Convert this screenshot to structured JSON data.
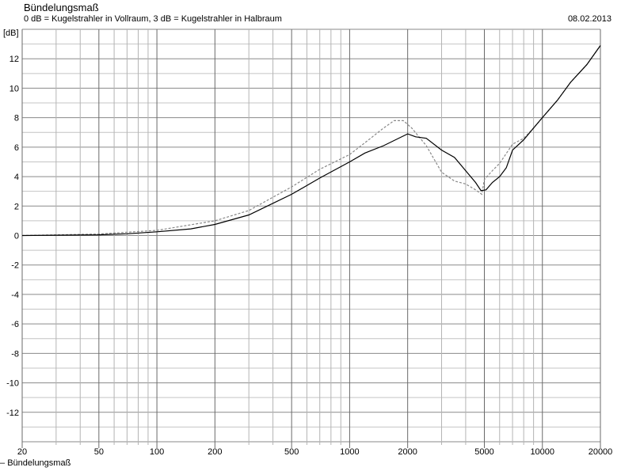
{
  "chart_data": {
    "type": "line",
    "title": "Bündelungsmaß",
    "subtitle": "0 dB = Kugelstrahler in Vollraum, 3 dB = Kugelstrahler in Halbraum",
    "date": "08.02.2013",
    "ylabel": "[dB]",
    "xlabel": "",
    "xscale": "log",
    "xlim": [
      20,
      20000
    ],
    "ylim": [
      -14,
      14
    ],
    "grid": true,
    "x_ticks": [
      20,
      50,
      100,
      200,
      500,
      1000,
      2000,
      5000,
      10000,
      20000
    ],
    "y_ticks": [
      12,
      10,
      8,
      6,
      4,
      2,
      0,
      -2,
      -4,
      -6,
      -8,
      -10,
      -12
    ],
    "legend": {
      "placement": "bottom-left",
      "entries": [
        "Bündelungsmaß"
      ]
    },
    "series": [
      {
        "name": "Bündelungsmaß",
        "color": "#000000",
        "style": "solid",
        "points": [
          [
            20,
            0
          ],
          [
            30,
            0.02
          ],
          [
            50,
            0.05
          ],
          [
            70,
            0.12
          ],
          [
            100,
            0.25
          ],
          [
            150,
            0.45
          ],
          [
            200,
            0.75
          ],
          [
            300,
            1.4
          ],
          [
            500,
            2.8
          ],
          [
            700,
            3.9
          ],
          [
            1000,
            5.0
          ],
          [
            1200,
            5.6
          ],
          [
            1500,
            6.1
          ],
          [
            2000,
            6.9
          ],
          [
            2200,
            6.7
          ],
          [
            2500,
            6.6
          ],
          [
            3000,
            5.8
          ],
          [
            3500,
            5.3
          ],
          [
            4000,
            4.4
          ],
          [
            4500,
            3.6
          ],
          [
            4800,
            3.05
          ],
          [
            5100,
            3.1
          ],
          [
            5500,
            3.6
          ],
          [
            6000,
            4.0
          ],
          [
            6500,
            4.6
          ],
          [
            7000,
            5.8
          ],
          [
            8000,
            6.5
          ],
          [
            9000,
            7.3
          ],
          [
            10000,
            8.0
          ],
          [
            12000,
            9.2
          ],
          [
            14000,
            10.4
          ],
          [
            17000,
            11.6
          ],
          [
            20000,
            12.9
          ]
        ]
      },
      {
        "color": "#888888",
        "style": "dashed",
        "points": [
          [
            20,
            0
          ],
          [
            50,
            0.1
          ],
          [
            100,
            0.35
          ],
          [
            200,
            1.0
          ],
          [
            300,
            1.7
          ],
          [
            500,
            3.3
          ],
          [
            700,
            4.5
          ],
          [
            1000,
            5.5
          ],
          [
            1200,
            6.3
          ],
          [
            1500,
            7.3
          ],
          [
            1700,
            7.8
          ],
          [
            1900,
            7.8
          ],
          [
            2100,
            7.3
          ],
          [
            2500,
            6.1
          ],
          [
            3000,
            4.3
          ],
          [
            3500,
            3.7
          ],
          [
            4000,
            3.5
          ],
          [
            4500,
            3.1
          ],
          [
            4850,
            2.8
          ],
          [
            5000,
            3.8
          ],
          [
            5500,
            4.4
          ],
          [
            6000,
            4.9
          ],
          [
            7000,
            6.2
          ],
          [
            8000,
            6.6
          ],
          [
            9000,
            7.3
          ],
          [
            10000,
            8.0
          ],
          [
            12000,
            9.2
          ],
          [
            14000,
            10.4
          ],
          [
            17000,
            11.6
          ],
          [
            20000,
            12.9
          ]
        ]
      }
    ]
  }
}
